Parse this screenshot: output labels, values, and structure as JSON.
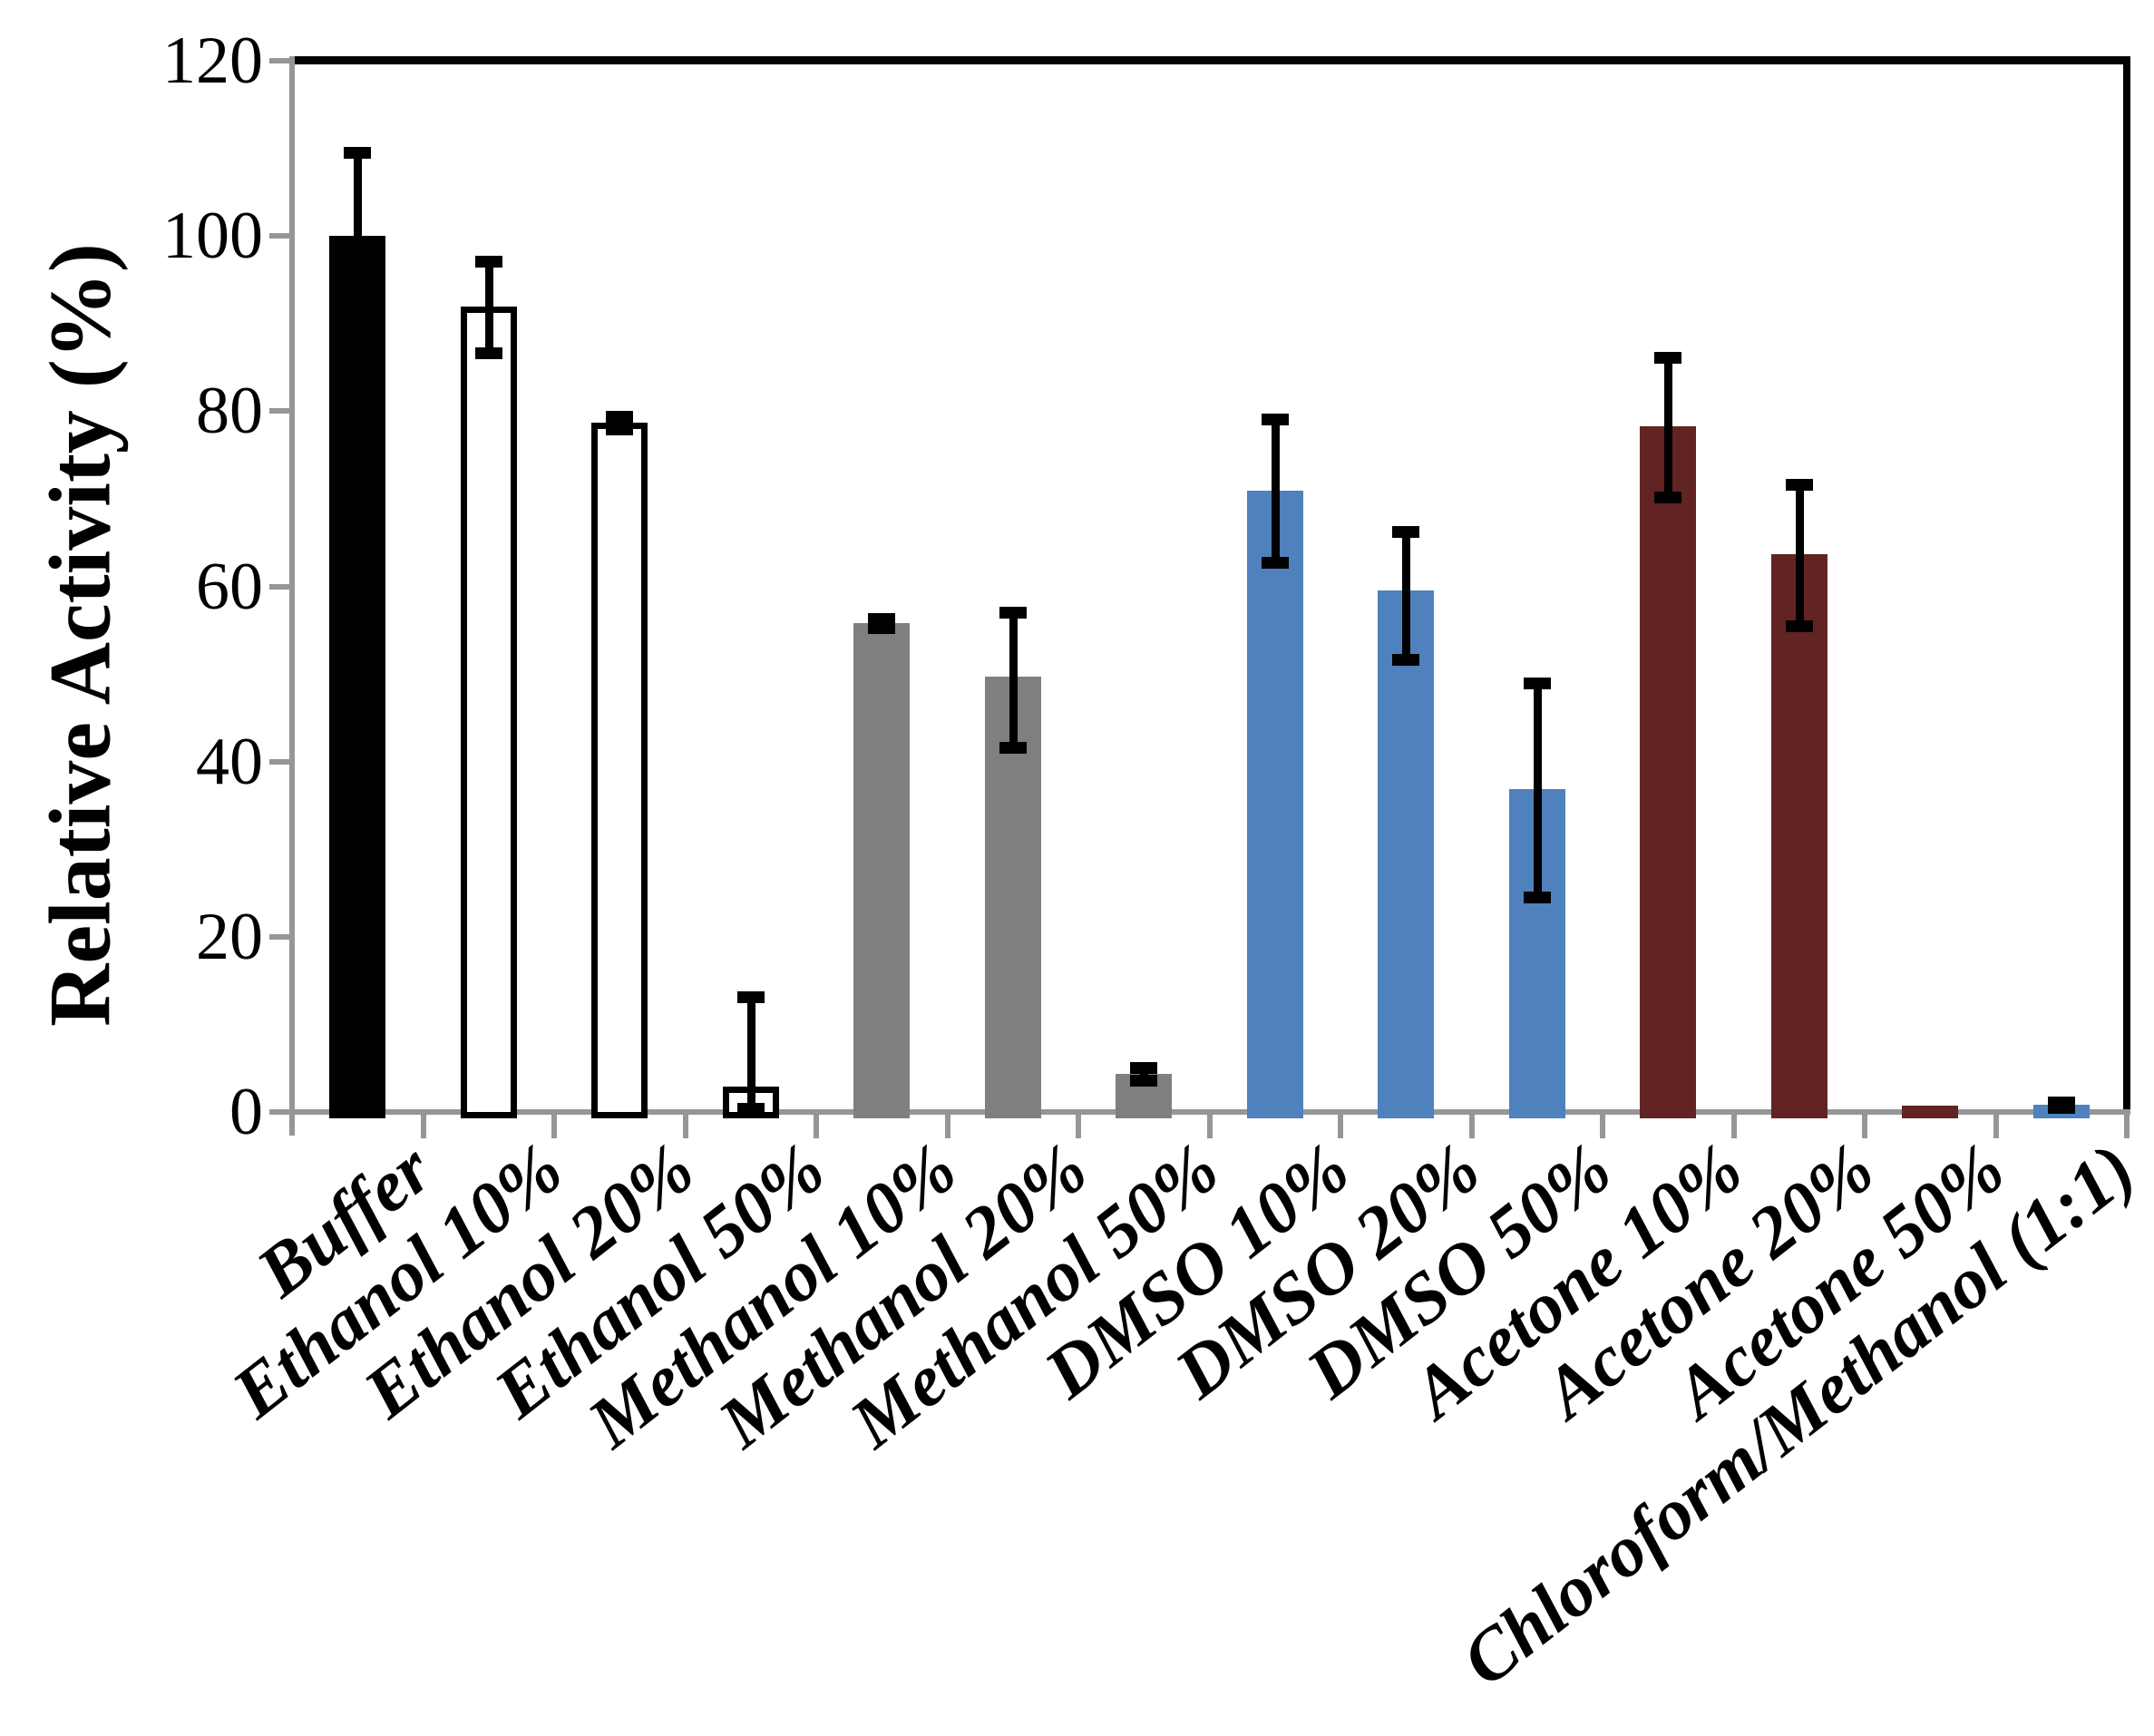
{
  "chart_data": {
    "type": "bar",
    "title": "",
    "xlabel": "",
    "ylabel": "Relative Activity (%)",
    "ylim": [
      0,
      120
    ],
    "yticks": [
      0,
      20,
      40,
      60,
      80,
      100,
      120
    ],
    "grid": false,
    "legend": "none",
    "xtick_rotation_deg": 38,
    "colors": {
      "axis": "#969696",
      "frame": "#000000",
      "error_bar": "#000000",
      "ethanol_fill": "#FFFFFF",
      "methanol_fill": "#7F7F7F",
      "dmso_fill": "#4F81BD",
      "acetone_fill": "#612423",
      "buffer_fill": "#000000"
    },
    "categories": [
      "Buffer",
      "Ethanol 10%",
      "Ethanol 20%",
      "Ethanol 50%",
      "Methanol 10%",
      "Methanol 20%",
      "Methanol 50%",
      "DMSO 10%",
      "DMSO 20%",
      "DMSO 50%",
      "Acetone 10%",
      "Acetone 20%",
      "Acetone 50%",
      "Chloroform/Methanol (1:1)"
    ],
    "bars": [
      {
        "label": "Buffer",
        "value": 100.0,
        "error_up": 9.5,
        "error_down": 9.5,
        "fill": "#000000",
        "outline": "#000000"
      },
      {
        "label": "Ethanol 10%",
        "value": 91.9,
        "error_up": 5.2,
        "error_down": 5.2,
        "fill": "#FFFFFF",
        "outline": "#000000"
      },
      {
        "label": "Ethanol 20%",
        "value": 78.7,
        "error_up": 0.7,
        "error_down": 0.7,
        "fill": "#FFFFFF",
        "outline": "#000000"
      },
      {
        "label": "Ethanol 50%",
        "value": 2.9,
        "error_up": 10.3,
        "error_down": 2.5,
        "fill": "#FFFFFF",
        "outline": "#000000"
      },
      {
        "label": "Methanol 10%",
        "value": 55.8,
        "error_up": 0.5,
        "error_down": 0.5,
        "fill": "#7F7F7F",
        "outline": null
      },
      {
        "label": "Methanol 20%",
        "value": 49.7,
        "error_up": 7.4,
        "error_down": 8.1,
        "fill": "#7F7F7F",
        "outline": null
      },
      {
        "label": "Methanol 50%",
        "value": 4.4,
        "error_up": 0.7,
        "error_down": 0.8,
        "fill": "#7F7F7F",
        "outline": null
      },
      {
        "label": "DMSO 10%",
        "value": 70.9,
        "error_up": 8.2,
        "error_down": 8.2,
        "fill": "#4F81BD",
        "outline": null
      },
      {
        "label": "DMSO 20%",
        "value": 59.5,
        "error_up": 6.8,
        "error_down": 7.8,
        "fill": "#4F81BD",
        "outline": null
      },
      {
        "label": "DMSO 50%",
        "value": 36.9,
        "error_up": 12.1,
        "error_down": 12.4,
        "fill": "#4F81BD",
        "outline": null
      },
      {
        "label": "Acetone 10%",
        "value": 78.3,
        "error_up": 7.8,
        "error_down": 8.1,
        "fill": "#612423",
        "outline": null
      },
      {
        "label": "Acetone 20%",
        "value": 63.7,
        "error_up": 7.9,
        "error_down": 8.2,
        "fill": "#612423",
        "outline": null
      },
      {
        "label": "Acetone 50%",
        "value": 0.7,
        "error_up": 0,
        "error_down": 0,
        "fill": "#612423",
        "outline": null
      },
      {
        "label": "Chloroform/Methanol (1:1)",
        "value": 0.8,
        "error_up": 0.3,
        "error_down": 0.3,
        "fill": "#4F81BD",
        "outline": null
      }
    ]
  }
}
